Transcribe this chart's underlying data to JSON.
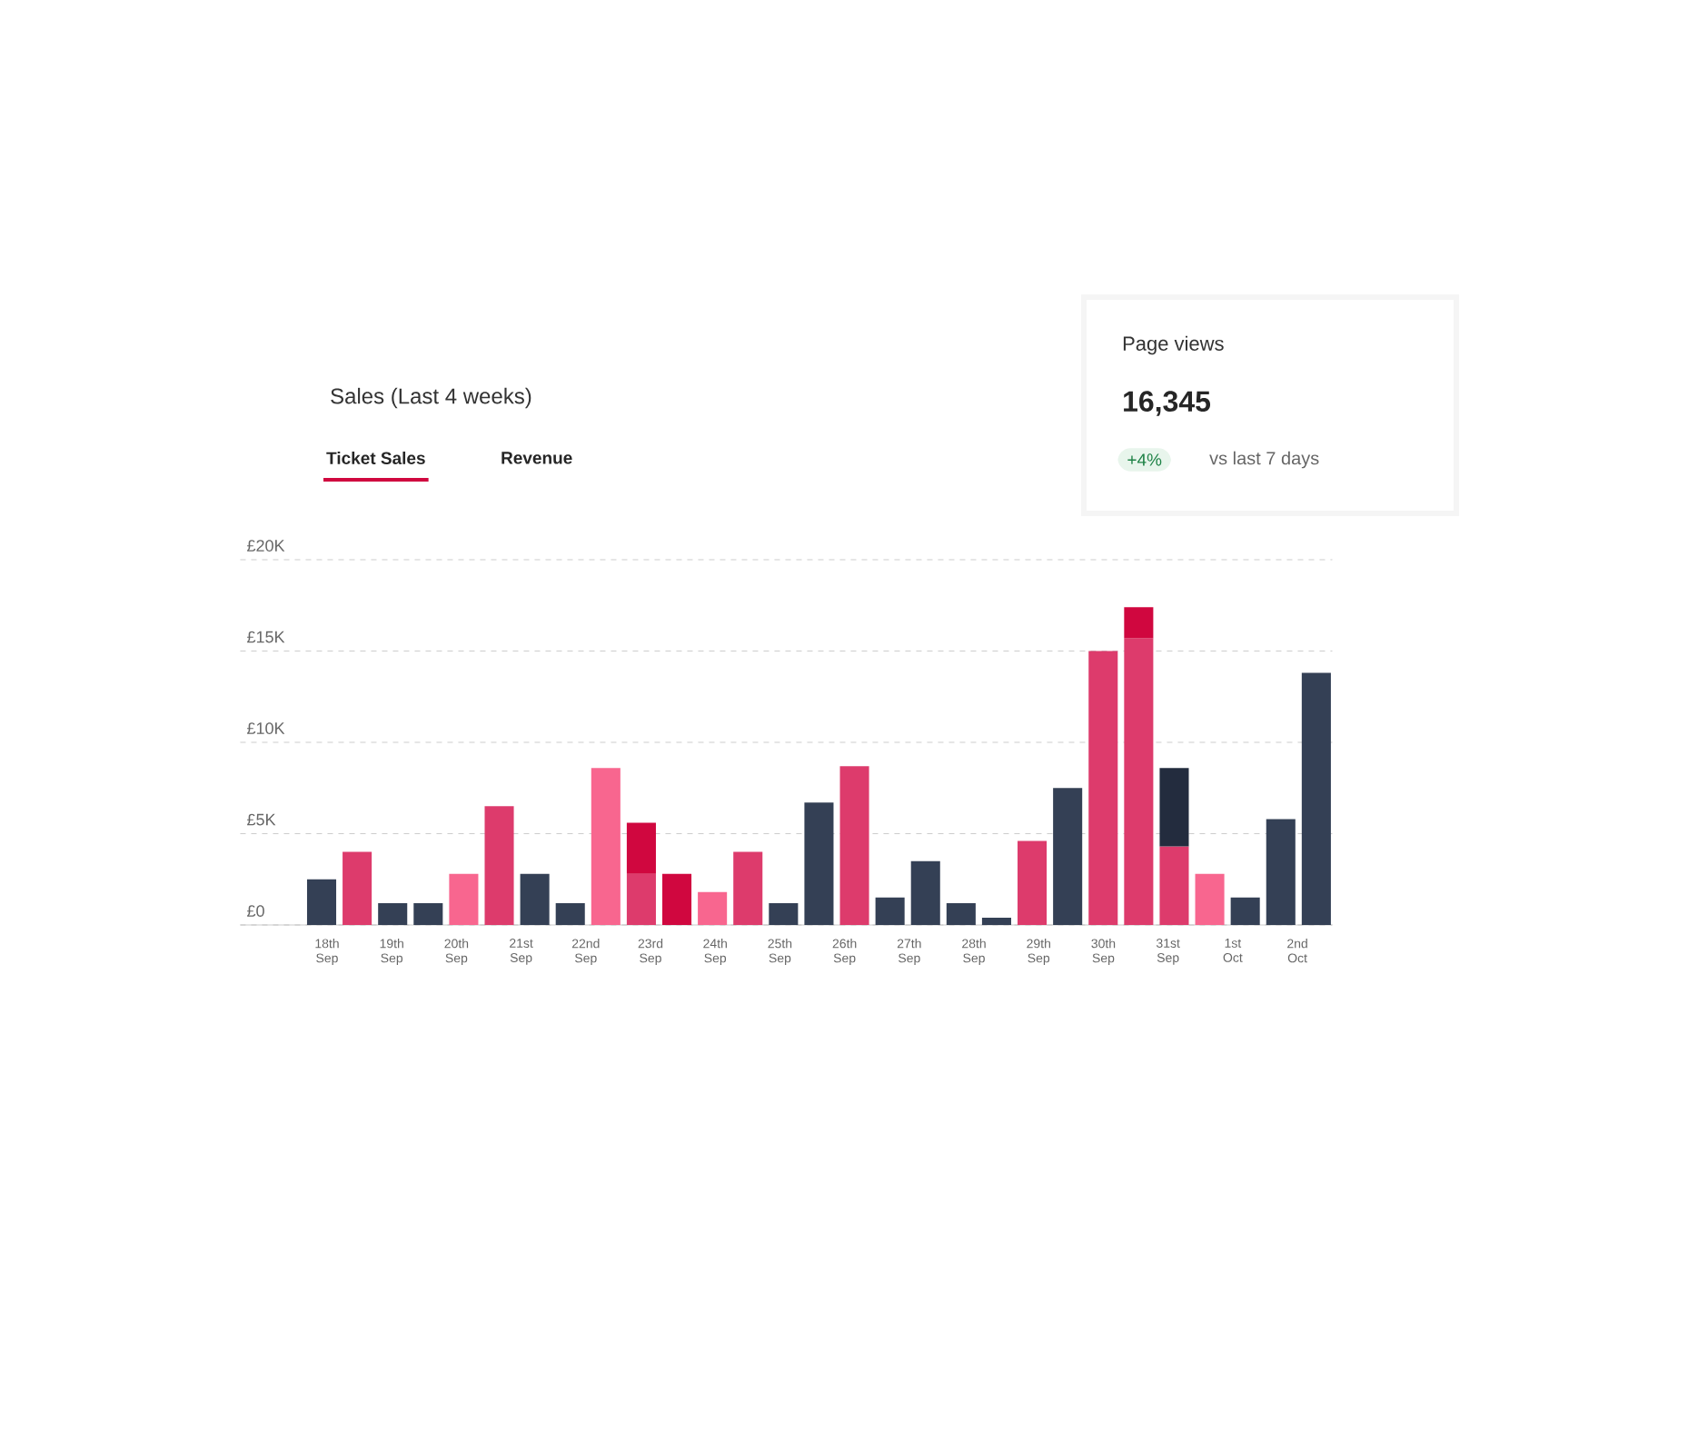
{
  "chart_data": {
    "type": "bar",
    "stacked": true,
    "title": "Sales (Last 4 weeks)",
    "categories": [
      null,
      null,
      null,
      null,
      null,
      null,
      null,
      null,
      null,
      null,
      null,
      null,
      null,
      null,
      null,
      null,
      null,
      null,
      null,
      null,
      null,
      null,
      null,
      null,
      null,
      null,
      null,
      null,
      null
    ],
    "series": [
      {
        "values": [
          2500,
          4000,
          1200,
          1200,
          2800,
          6500,
          2800,
          1200,
          8600,
          2800,
          2800,
          1800,
          4000,
          1200,
          6700,
          8700,
          1500,
          3500,
          1200,
          400,
          4600,
          7500,
          15000,
          15700,
          4300,
          2800,
          1500,
          5800,
          13800
        ],
        "colors": [
          "#344055",
          "#dd3b6c",
          "#344055",
          "#344055",
          "#f8668f",
          "#dd3b6c",
          "#344055",
          "#344055",
          "#f8668f",
          "#dd3b6c",
          "#d0073f",
          "#f8668f",
          "#dd3b6c",
          "#344055",
          "#344055",
          "#dd3b6c",
          "#344055",
          "#344055",
          "#344055",
          "#344055",
          "#dd3b6c",
          "#344055",
          "#dd3b6c",
          "#dd3b6c",
          "#dd3b6c",
          "#f8668f",
          "#344055",
          "#344055",
          "#344055"
        ]
      },
      {
        "values": [
          null,
          null,
          null,
          null,
          null,
          null,
          null,
          null,
          null,
          2800,
          null,
          null,
          null,
          null,
          null,
          null,
          null,
          null,
          null,
          null,
          null,
          null,
          null,
          1700,
          4300,
          null,
          null,
          null,
          null
        ],
        "colors": [
          null,
          null,
          null,
          null,
          null,
          null,
          null,
          null,
          null,
          "#d0073f",
          null,
          null,
          null,
          null,
          null,
          null,
          null,
          null,
          null,
          null,
          null,
          null,
          null,
          "#d0073f",
          "#232c3e",
          null,
          null,
          null,
          null
        ]
      }
    ],
    "ylim": [
      0,
      20000
    ],
    "yticks": [
      {
        "value": 0,
        "label": "£0"
      },
      {
        "value": 5000,
        "label": "£5K"
      },
      {
        "value": 10000,
        "label": "£10K"
      },
      {
        "value": 15000,
        "label": "£15K"
      },
      {
        "value": 20000,
        "label": "£20K"
      }
    ],
    "grid": "y",
    "annotations": [
      "Ticket Sales",
      "Revenue",
      "Page views",
      "16,345",
      "+4%",
      "vs last 7 days",
      "18th Sep",
      "19th Sep",
      "20th Sep",
      "21st Sep",
      "22nd Sep",
      "23rd Sep",
      "24th Sep",
      "25th Sep",
      "26th Sep",
      "27th Sep",
      "28th Sep",
      "29th Sep",
      "30th Sep",
      "31st Sep",
      "1st Oct",
      "2nd Oct"
    ]
  }
}
